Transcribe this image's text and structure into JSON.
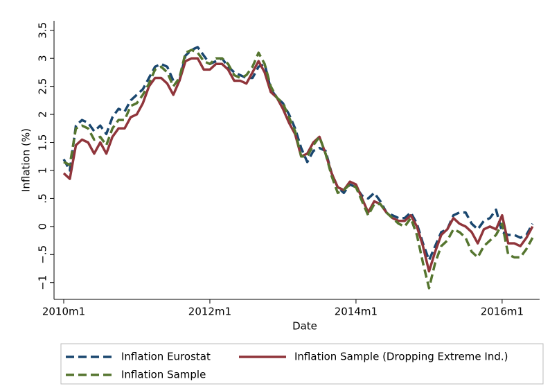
{
  "chart_data": {
    "type": "line",
    "x_label": "Date",
    "y_label": "Inflation (%)",
    "x": [
      "2010m1",
      "2010m2",
      "2010m3",
      "2010m4",
      "2010m5",
      "2010m6",
      "2010m7",
      "2010m8",
      "2010m9",
      "2010m10",
      "2010m11",
      "2010m12",
      "2011m1",
      "2011m2",
      "2011m3",
      "2011m4",
      "2011m5",
      "2011m6",
      "2011m7",
      "2011m8",
      "2011m9",
      "2011m10",
      "2011m11",
      "2011m12",
      "2012m1",
      "2012m2",
      "2012m3",
      "2012m4",
      "2012m5",
      "2012m6",
      "2012m7",
      "2012m8",
      "2012m9",
      "2012m10",
      "2012m11",
      "2012m12",
      "2013m1",
      "2013m2",
      "2013m3",
      "2013m4",
      "2013m5",
      "2013m6",
      "2013m7",
      "2013m8",
      "2013m9",
      "2013m10",
      "2013m11",
      "2013m12",
      "2014m1",
      "2014m2",
      "2014m3",
      "2014m4",
      "2014m5",
      "2014m6",
      "2014m7",
      "2014m8",
      "2014m9",
      "2014m10",
      "2014m11",
      "2014m12",
      "2015m1",
      "2015m2",
      "2015m3",
      "2015m4",
      "2015m5",
      "2015m6",
      "2015m7",
      "2015m8",
      "2015m9",
      "2015m10",
      "2015m11",
      "2015m12",
      "2016m1",
      "2016m2",
      "2016m3",
      "2016m4",
      "2016m5",
      "2016m6"
    ],
    "xticks": [
      "2010m1",
      "2012m1",
      "2014m1",
      "2016m1"
    ],
    "ylim": [
      -1.3,
      3.67
    ],
    "yticks": [
      {
        "value": -1,
        "label": "−1"
      },
      {
        "value": -0.5,
        "label": "−.5"
      },
      0,
      {
        "value": 0.5,
        "label": ".5"
      },
      1,
      1.5,
      2,
      2.5,
      3,
      3.5
    ],
    "series": [
      {
        "name": "Inflation Eurostat",
        "color": "#1a476f",
        "dash": "dashed",
        "values": [
          1.2,
          1.0,
          1.8,
          1.9,
          1.85,
          1.7,
          1.8,
          1.65,
          1.95,
          2.1,
          2.05,
          2.25,
          2.35,
          2.45,
          2.65,
          2.85,
          2.9,
          2.85,
          2.6,
          2.6,
          3.05,
          3.15,
          3.2,
          3.05,
          2.9,
          2.95,
          3.0,
          2.85,
          2.75,
          2.7,
          2.65,
          2.65,
          2.85,
          2.9,
          2.45,
          2.3,
          2.2,
          2.0,
          1.75,
          1.4,
          1.15,
          1.35,
          1.4,
          1.35,
          0.95,
          0.7,
          0.6,
          0.75,
          0.7,
          0.55,
          0.5,
          0.6,
          0.45,
          0.25,
          0.2,
          0.15,
          0.15,
          0.25,
          0.05,
          -0.3,
          -0.6,
          -0.35,
          -0.1,
          -0.05,
          0.2,
          0.25,
          0.25,
          0.05,
          -0.05,
          0.1,
          0.15,
          0.3,
          -0.1,
          -0.15,
          -0.15,
          -0.2,
          -0.15,
          0.05
        ]
      },
      {
        "name": "Inflation Sample (Dropping Extreme Ind.)",
        "color": "#90353b",
        "dash": "solid",
        "values": [
          0.95,
          0.85,
          1.45,
          1.55,
          1.5,
          1.3,
          1.5,
          1.3,
          1.6,
          1.75,
          1.75,
          1.95,
          2.0,
          2.2,
          2.5,
          2.65,
          2.65,
          2.55,
          2.35,
          2.6,
          2.95,
          3.0,
          3.0,
          2.8,
          2.8,
          2.9,
          2.9,
          2.8,
          2.6,
          2.6,
          2.55,
          2.75,
          2.95,
          2.75,
          2.4,
          2.3,
          2.1,
          1.85,
          1.65,
          1.25,
          1.3,
          1.5,
          1.6,
          1.3,
          0.95,
          0.7,
          0.65,
          0.8,
          0.75,
          0.5,
          0.25,
          0.45,
          0.4,
          0.25,
          0.15,
          0.1,
          0.1,
          0.2,
          0.0,
          -0.35,
          -0.8,
          -0.45,
          -0.15,
          -0.05,
          0.15,
          0.05,
          0.0,
          -0.1,
          -0.3,
          -0.05,
          0.0,
          -0.05,
          0.2,
          -0.3,
          -0.3,
          -0.35,
          -0.2,
          0.0
        ]
      },
      {
        "name": "Inflation Sample",
        "color": "#55752f",
        "dash": "dashed",
        "values": [
          1.15,
          1.1,
          1.75,
          1.8,
          1.75,
          1.55,
          1.6,
          1.45,
          1.75,
          1.9,
          1.9,
          2.15,
          2.2,
          2.35,
          2.55,
          2.8,
          2.85,
          2.75,
          2.5,
          2.65,
          3.1,
          3.15,
          3.1,
          2.95,
          2.9,
          3.0,
          3.0,
          2.9,
          2.7,
          2.65,
          2.7,
          2.85,
          3.1,
          2.9,
          2.5,
          2.3,
          2.2,
          1.95,
          1.7,
          1.25,
          1.25,
          1.45,
          1.6,
          1.3,
          0.9,
          0.6,
          0.65,
          0.75,
          0.7,
          0.45,
          0.2,
          0.4,
          0.4,
          0.25,
          0.15,
          0.05,
          0.0,
          0.15,
          -0.15,
          -0.65,
          -1.1,
          -0.65,
          -0.35,
          -0.25,
          -0.05,
          -0.1,
          -0.2,
          -0.45,
          -0.55,
          -0.35,
          -0.25,
          -0.15,
          0.05,
          -0.5,
          -0.55,
          -0.55,
          -0.4,
          -0.2
        ]
      }
    ]
  }
}
